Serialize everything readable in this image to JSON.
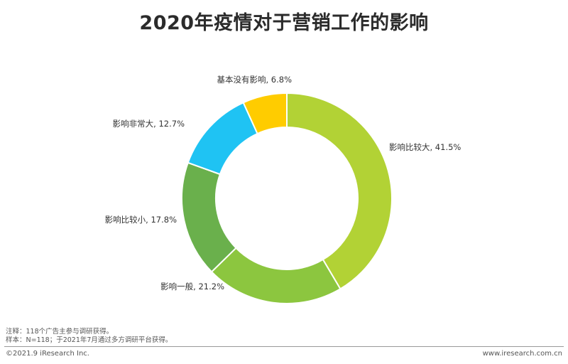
{
  "title": "2020年疫情对于营销工作的影响",
  "chart_data": {
    "type": "donut",
    "title": "2020年疫情对于营销工作的影响",
    "unit": "%",
    "slices": [
      {
        "label": "影响比较大",
        "value": 41.5,
        "display": "影响比较大, 41.5%",
        "color": "#b2d235"
      },
      {
        "label": "影响一般",
        "value": 21.2,
        "display": "影响一般, 21.2%",
        "color": "#8cc63f"
      },
      {
        "label": "影响比较小",
        "value": 17.8,
        "display": "影响比较小, 17.8%",
        "color": "#6ab04c"
      },
      {
        "label": "影响非常大",
        "value": 12.7,
        "display": "影响非常大, 12.7%",
        "color": "#1fc3f3"
      },
      {
        "label": "基本没有影响",
        "value": 6.8,
        "display": "基本没有影响, 6.8%",
        "color": "#ffcc00"
      }
    ]
  },
  "notes": {
    "line1": "注释：118个广告主参与调研获得。",
    "line2": "样本：N=118；于2021年7月通过多方调研平台获得。"
  },
  "footer": {
    "copyright": "©2021.9 iResearch Inc.",
    "website": "www.iresearch.com.cn"
  }
}
